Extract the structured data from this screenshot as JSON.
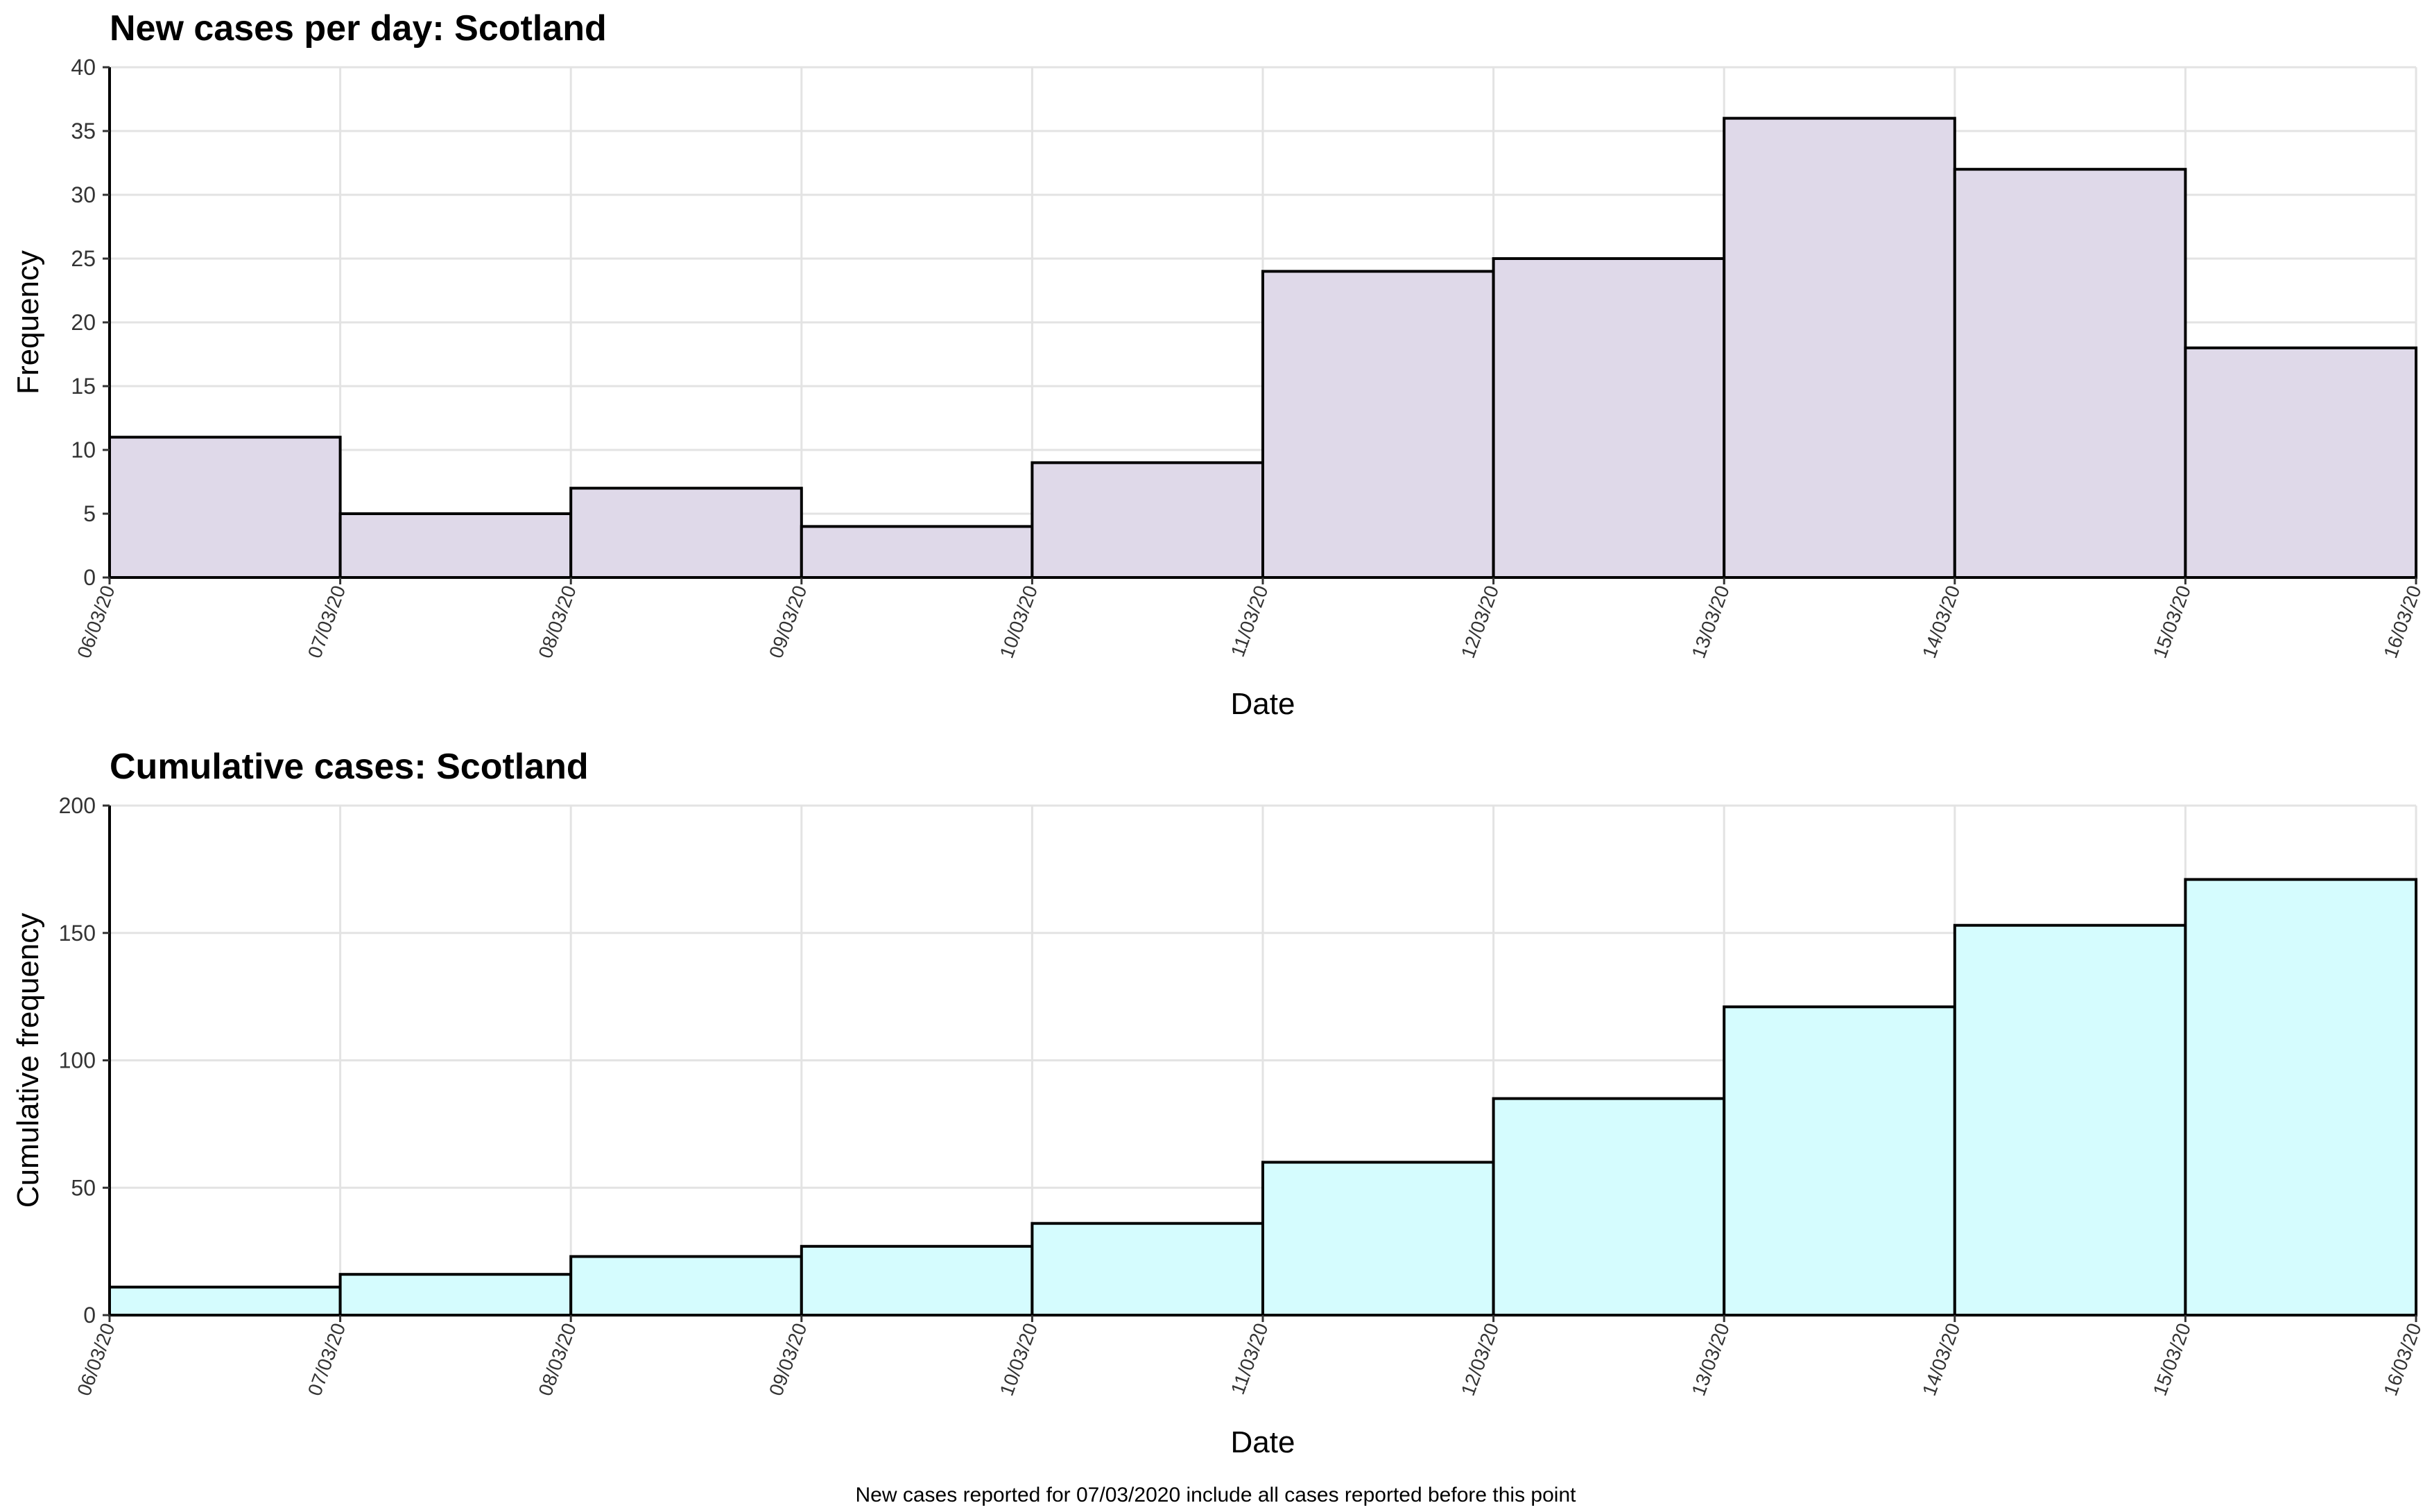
{
  "chart_data": [
    {
      "type": "bar",
      "title": "New cases per day: Scotland",
      "xlabel": "Date",
      "ylabel": "Frequency",
      "ylim": [
        0,
        40
      ],
      "yticks": [
        0,
        5,
        10,
        15,
        20,
        25,
        30,
        35,
        40
      ],
      "xticks": [
        "06/03/20",
        "07/03/20",
        "08/03/20",
        "09/03/20",
        "10/03/20",
        "11/03/20",
        "12/03/20",
        "13/03/20",
        "14/03/20",
        "15/03/20",
        "16/03/20"
      ],
      "categories": [
        "06/03/20",
        "07/03/20",
        "08/03/20",
        "09/03/20",
        "10/03/20",
        "11/03/20",
        "12/03/20",
        "13/03/20",
        "14/03/20",
        "15/03/20"
      ],
      "values": [
        11,
        5,
        7,
        4,
        9,
        24,
        25,
        36,
        32,
        18
      ],
      "bar_color": "#dfd9e9",
      "grid": true,
      "legend": "none"
    },
    {
      "type": "bar",
      "title": "Cumulative cases: Scotland",
      "xlabel": "Date",
      "ylabel": "Cumulative frequency",
      "ylim": [
        0,
        200
      ],
      "yticks": [
        0,
        50,
        100,
        150,
        200
      ],
      "xticks": [
        "06/03/20",
        "07/03/20",
        "08/03/20",
        "09/03/20",
        "10/03/20",
        "11/03/20",
        "12/03/20",
        "13/03/20",
        "14/03/20",
        "15/03/20",
        "16/03/20"
      ],
      "categories": [
        "06/03/20",
        "07/03/20",
        "08/03/20",
        "09/03/20",
        "10/03/20",
        "11/03/20",
        "12/03/20",
        "13/03/20",
        "14/03/20",
        "15/03/20"
      ],
      "values": [
        11,
        16,
        23,
        27,
        36,
        60,
        85,
        121,
        153,
        171
      ],
      "bar_color": "#d5fcfe",
      "grid": true,
      "legend": "none"
    }
  ],
  "caption": "New cases reported for 07/03/2020 include all cases reported before this point"
}
